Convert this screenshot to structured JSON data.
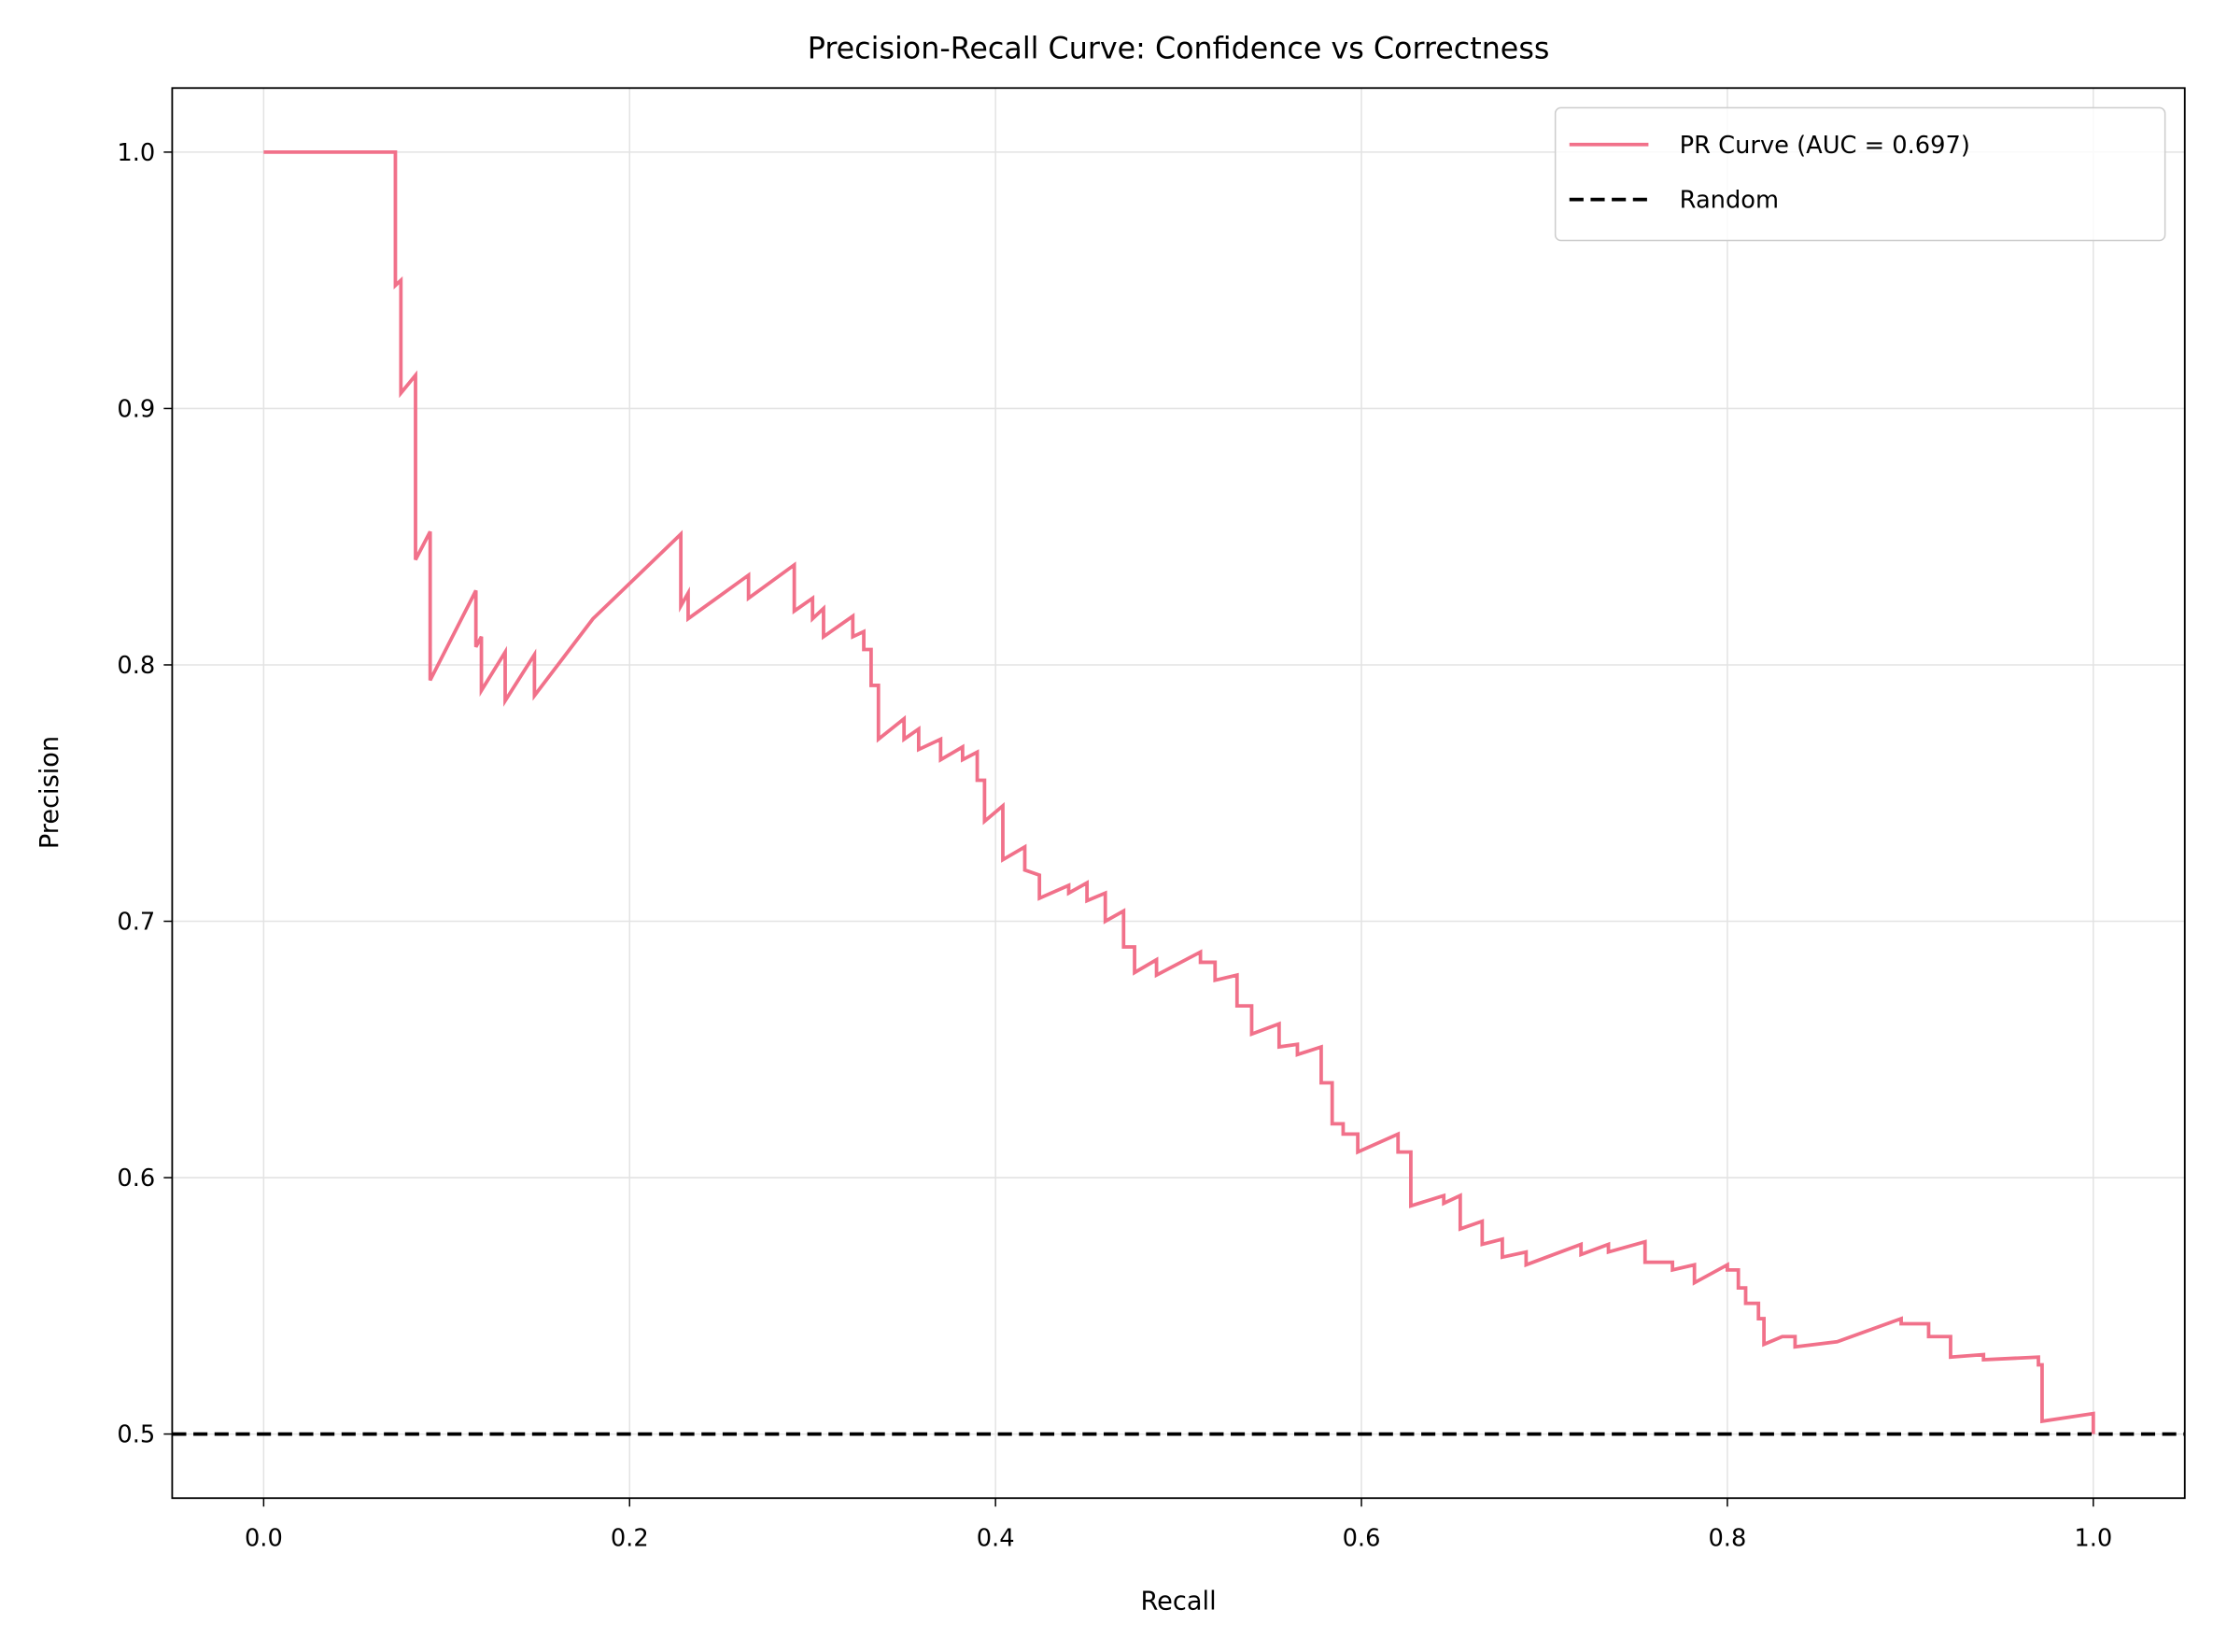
{
  "chart_data": {
    "type": "line",
    "title": "Precision-Recall Curve: Confidence vs Correctness",
    "x_label": "Recall",
    "y_label": "Precision",
    "xlim": [
      -0.05,
      1.05
    ],
    "ylim": [
      0.475,
      1.025
    ],
    "xticks": [
      {
        "value": 0,
        "label": "0.0"
      },
      0.2,
      0.4,
      0.6,
      0.8,
      {
        "value": 1,
        "label": "1.0"
      }
    ],
    "yticks": [
      0.5,
      0.6,
      0.7,
      0.8,
      0.9,
      {
        "value": 1,
        "label": "1.0"
      }
    ],
    "grid": true,
    "legend": "upper right",
    "series": [
      {
        "name": "PR Curve (AUC = 0.697)",
        "color": "#f1718a",
        "linestyle": "solid",
        "x": [
          0,
          0.072,
          0.072,
          0.075,
          0.075,
          0.083,
          0.083,
          0.091,
          0.091,
          0.116,
          0.116,
          0.119,
          0.119,
          0.132,
          0.132,
          0.148,
          0.148,
          0.18,
          0.228,
          0.228,
          0.232,
          0.232,
          0.265,
          0.265,
          0.29,
          0.29,
          0.3,
          0.3,
          0.306,
          0.306,
          0.322,
          0.322,
          0.328,
          0.328,
          0.332,
          0.332,
          0.336,
          0.336,
          0.35,
          0.35,
          0.358,
          0.358,
          0.37,
          0.37,
          0.382,
          0.382,
          0.39,
          0.39,
          0.394,
          0.394,
          0.404,
          0.404,
          0.416,
          0.416,
          0.424,
          0.424,
          0.44,
          0.44,
          0.45,
          0.45,
          0.46,
          0.46,
          0.47,
          0.47,
          0.476,
          0.476,
          0.488,
          0.488,
          0.512,
          0.512,
          0.52,
          0.52,
          0.532,
          0.532,
          0.54,
          0.54,
          0.555,
          0.555,
          0.565,
          0.565,
          0.578,
          0.578,
          0.584,
          0.584,
          0.59,
          0.59,
          0.598,
          0.598,
          0.62,
          0.62,
          0.627,
          0.627,
          0.645,
          0.645,
          0.654,
          0.654,
          0.666,
          0.666,
          0.677,
          0.677,
          0.69,
          0.69,
          0.72,
          0.72,
          0.735,
          0.735,
          0.755,
          0.755,
          0.77,
          0.77,
          0.782,
          0.782,
          0.8,
          0.8,
          0.806,
          0.806,
          0.81,
          0.81,
          0.817,
          0.817,
          0.82,
          0.82,
          0.83,
          0.837,
          0.837,
          0.86,
          0.895,
          0.895,
          0.91,
          0.91,
          0.922,
          0.922,
          0.94,
          0.94,
          0.97,
          0.97,
          0.972,
          0.972,
          1.0,
          1.0
        ],
        "values": [
          1.0,
          1.0,
          0.948,
          0.95,
          0.906,
          0.913,
          0.841,
          0.852,
          0.794,
          0.829,
          0.807,
          0.811,
          0.79,
          0.805,
          0.786,
          0.804,
          0.788,
          0.818,
          0.851,
          0.823,
          0.828,
          0.818,
          0.835,
          0.826,
          0.839,
          0.821,
          0.826,
          0.818,
          0.822,
          0.811,
          0.819,
          0.811,
          0.813,
          0.806,
          0.806,
          0.792,
          0.792,
          0.771,
          0.779,
          0.771,
          0.775,
          0.767,
          0.771,
          0.763,
          0.768,
          0.763,
          0.766,
          0.755,
          0.755,
          0.739,
          0.745,
          0.724,
          0.729,
          0.72,
          0.718,
          0.709,
          0.714,
          0.711,
          0.715,
          0.708,
          0.711,
          0.7,
          0.704,
          0.69,
          0.69,
          0.68,
          0.685,
          0.679,
          0.688,
          0.684,
          0.684,
          0.677,
          0.679,
          0.667,
          0.667,
          0.656,
          0.66,
          0.651,
          0.652,
          0.648,
          0.651,
          0.637,
          0.637,
          0.621,
          0.621,
          0.617,
          0.617,
          0.61,
          0.617,
          0.61,
          0.61,
          0.589,
          0.593,
          0.59,
          0.593,
          0.58,
          0.583,
          0.574,
          0.576,
          0.569,
          0.571,
          0.566,
          0.574,
          0.57,
          0.574,
          0.571,
          0.575,
          0.567,
          0.567,
          0.564,
          0.566,
          0.559,
          0.566,
          0.564,
          0.564,
          0.557,
          0.557,
          0.551,
          0.551,
          0.545,
          0.545,
          0.535,
          0.538,
          0.538,
          0.534,
          0.536,
          0.545,
          0.543,
          0.543,
          0.538,
          0.538,
          0.53,
          0.531,
          0.529,
          0.53,
          0.527,
          0.527,
          0.505,
          0.508,
          0.5
        ]
      },
      {
        "name": "Random",
        "color": "#000000",
        "linestyle": "dashed",
        "values": [
          0.5
        ]
      }
    ]
  }
}
